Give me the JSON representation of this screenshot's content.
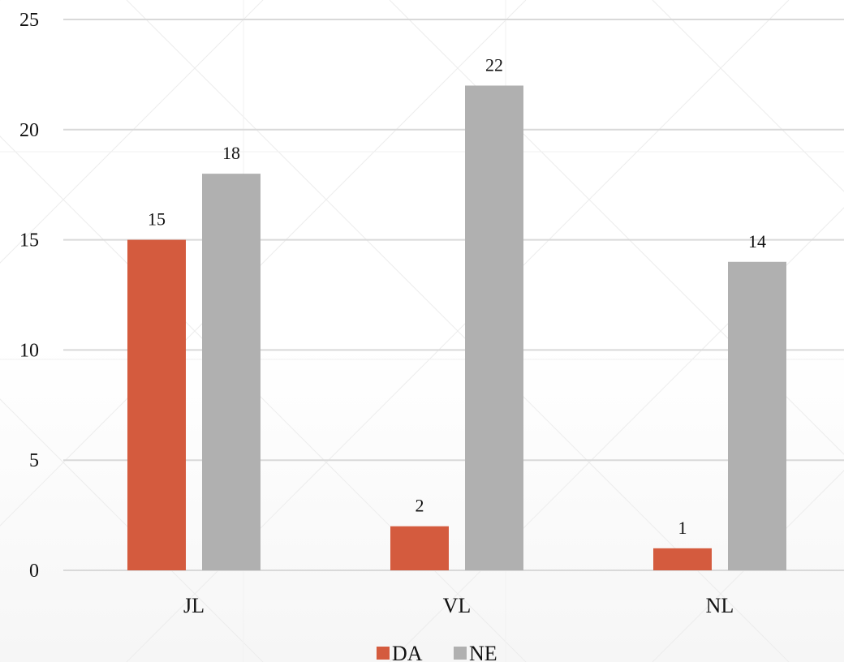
{
  "chart_data": {
    "type": "bar",
    "categories": [
      "JL",
      "VL",
      "NL"
    ],
    "series": [
      {
        "name": "DA",
        "values": [
          15,
          2,
          1
        ],
        "color": "#d45b3e"
      },
      {
        "name": "NE",
        "values": [
          18,
          22,
          14
        ],
        "color": "#b0b0b0"
      }
    ],
    "ylim": [
      0,
      25
    ],
    "yticks": [
      0,
      5,
      10,
      15,
      20,
      25
    ],
    "grid": true,
    "legend_position": "bottom",
    "data_labels": true,
    "colors": {
      "gridline": "#d9d9d9",
      "background_pattern": "#ececec",
      "text": "#111111"
    }
  }
}
